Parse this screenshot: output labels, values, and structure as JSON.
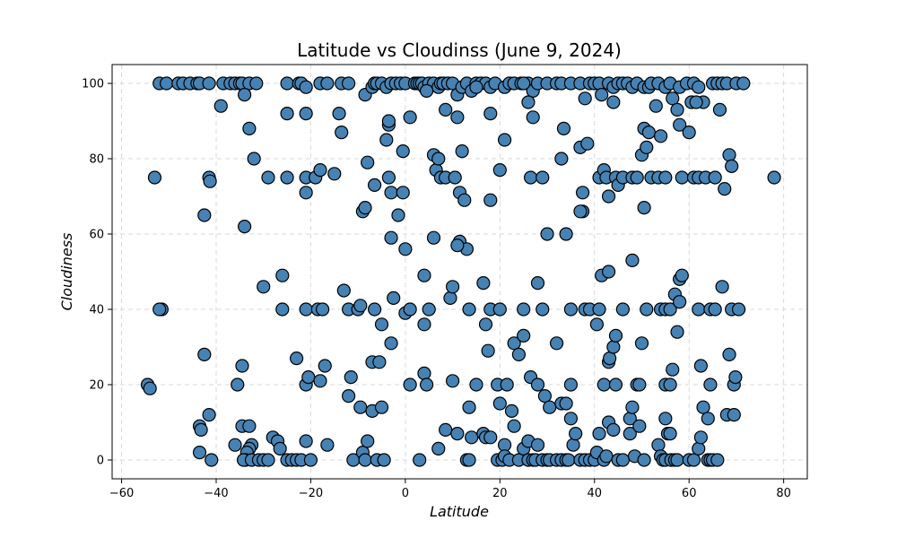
{
  "chart_data": {
    "type": "scatter",
    "title": "Latitude vs Cloudinss (June 9, 2024)",
    "xlabel": "Latitude",
    "ylabel": "Cloudiness",
    "xlim": [
      -62,
      85
    ],
    "ylim": [
      -5,
      105
    ],
    "xticks": [
      -60,
      -40,
      -20,
      0,
      20,
      40,
      60,
      80
    ],
    "yticks": [
      0,
      20,
      40,
      60,
      80,
      100
    ],
    "grid": true,
    "marker_color": "#4682b4",
    "marker_edge": "#000000",
    "points": [
      [
        -52,
        100
      ],
      [
        -50.5,
        100
      ],
      [
        -48,
        100
      ],
      [
        -47,
        100
      ],
      [
        -45.5,
        100
      ],
      [
        -44,
        100
      ],
      [
        -43.5,
        100
      ],
      [
        -41.5,
        100
      ],
      [
        -38.5,
        100
      ],
      [
        -37,
        100
      ],
      [
        -36,
        100
      ],
      [
        -35,
        100
      ],
      [
        -34.5,
        100
      ],
      [
        -33,
        100
      ],
      [
        -31.5,
        100
      ],
      [
        -25,
        100
      ],
      [
        -22.5,
        100
      ],
      [
        -22,
        100
      ],
      [
        -21,
        99
      ],
      [
        -18,
        100
      ],
      [
        -16.5,
        100
      ],
      [
        -13.5,
        100
      ],
      [
        -12,
        100
      ],
      [
        -8.5,
        97
      ],
      [
        -7,
        99
      ],
      [
        -6.5,
        100
      ],
      [
        -6,
        100
      ],
      [
        -5,
        100
      ],
      [
        -4,
        99
      ],
      [
        -3,
        100
      ],
      [
        -2,
        100
      ],
      [
        -1,
        100
      ],
      [
        0,
        100
      ],
      [
        2,
        100
      ],
      [
        2.5,
        100
      ],
      [
        3,
        100
      ],
      [
        3.5,
        100
      ],
      [
        4,
        99
      ],
      [
        5,
        100
      ],
      [
        6,
        100
      ],
      [
        7,
        99
      ],
      [
        7.5,
        100
      ],
      [
        8,
        100
      ],
      [
        9,
        100
      ],
      [
        10,
        100
      ],
      [
        11,
        97
      ],
      [
        12,
        99
      ],
      [
        13,
        100
      ],
      [
        14,
        98
      ],
      [
        15,
        100
      ],
      [
        16,
        100
      ],
      [
        17,
        100
      ],
      [
        18,
        99
      ],
      [
        19,
        100
      ],
      [
        21,
        99
      ],
      [
        22,
        100
      ],
      [
        23,
        100
      ],
      [
        24.5,
        100
      ],
      [
        26,
        100
      ],
      [
        27,
        98
      ],
      [
        28,
        100
      ],
      [
        30,
        100
      ],
      [
        32,
        100
      ],
      [
        33,
        100
      ],
      [
        35,
        100
      ],
      [
        37,
        100
      ],
      [
        39,
        100
      ],
      [
        40,
        100
      ],
      [
        41,
        100
      ],
      [
        41.5,
        97
      ],
      [
        43,
        100
      ],
      [
        44,
        99
      ],
      [
        45,
        100
      ],
      [
        46,
        100
      ],
      [
        47,
        100
      ],
      [
        48,
        99
      ],
      [
        49,
        100
      ],
      [
        50.5,
        99
      ],
      [
        51.5,
        99
      ],
      [
        52,
        100
      ],
      [
        53.5,
        100
      ],
      [
        55,
        99
      ],
      [
        56,
        100
      ],
      [
        58,
        99
      ],
      [
        59.5,
        100
      ],
      [
        61,
        100
      ],
      [
        62,
        99
      ],
      [
        63,
        95
      ],
      [
        65,
        100
      ],
      [
        66,
        100
      ],
      [
        67,
        100
      ],
      [
        68,
        100
      ],
      [
        70,
        100
      ],
      [
        71.5,
        100
      ],
      [
        -53,
        75
      ],
      [
        -51.5,
        40
      ],
      [
        -39,
        94
      ],
      [
        -41.5,
        75
      ],
      [
        -41.3,
        74
      ],
      [
        -42.5,
        65
      ],
      [
        -33,
        88
      ],
      [
        -32,
        80
      ],
      [
        -34,
        62
      ],
      [
        -34,
        97
      ],
      [
        -25,
        92
      ],
      [
        -29,
        75
      ],
      [
        -25,
        75
      ],
      [
        -21,
        92
      ],
      [
        -21,
        75
      ],
      [
        -21,
        71
      ],
      [
        -19,
        75
      ],
      [
        -18,
        77
      ],
      [
        -15,
        76
      ],
      [
        -14,
        92
      ],
      [
        -13.5,
        87
      ],
      [
        -9,
        66
      ],
      [
        -8.5,
        67
      ],
      [
        -8,
        79
      ],
      [
        -6.5,
        73
      ],
      [
        -4,
        85
      ],
      [
        -3.5,
        89
      ],
      [
        -3.5,
        90
      ],
      [
        -3.5,
        75
      ],
      [
        -3,
        71
      ],
      [
        -1.5,
        65
      ],
      [
        -0.5,
        82
      ],
      [
        -0.5,
        71
      ],
      [
        1,
        91
      ],
      [
        4.5,
        98
      ],
      [
        6,
        81
      ],
      [
        6.5,
        77
      ],
      [
        7,
        80
      ],
      [
        7.5,
        75
      ],
      [
        8.5,
        93
      ],
      [
        8.5,
        75
      ],
      [
        10.5,
        75
      ],
      [
        11,
        91
      ],
      [
        11.5,
        71
      ],
      [
        12,
        82
      ],
      [
        12.5,
        69
      ],
      [
        15,
        99
      ],
      [
        18,
        92
      ],
      [
        18,
        69
      ],
      [
        20,
        77
      ],
      [
        21,
        85
      ],
      [
        25,
        100
      ],
      [
        26,
        95
      ],
      [
        26.5,
        75
      ],
      [
        27,
        91
      ],
      [
        29,
        75
      ],
      [
        33,
        80
      ],
      [
        33.5,
        88
      ],
      [
        37,
        83
      ],
      [
        37.5,
        66
      ],
      [
        37.5,
        71
      ],
      [
        38,
        96
      ],
      [
        38.5,
        84
      ],
      [
        41,
        75
      ],
      [
        42,
        77
      ],
      [
        42.5,
        75
      ],
      [
        43,
        70
      ],
      [
        44,
        95
      ],
      [
        44.5,
        75
      ],
      [
        45,
        73
      ],
      [
        46,
        75
      ],
      [
        48,
        75
      ],
      [
        49,
        75
      ],
      [
        50,
        81
      ],
      [
        50.5,
        88
      ],
      [
        51,
        83
      ],
      [
        51.5,
        87
      ],
      [
        52,
        75
      ],
      [
        53,
        94
      ],
      [
        53.5,
        75
      ],
      [
        54,
        86
      ],
      [
        55,
        75
      ],
      [
        56.5,
        96
      ],
      [
        57.5,
        93
      ],
      [
        58,
        89
      ],
      [
        58.5,
        75
      ],
      [
        60,
        87
      ],
      [
        60.5,
        95
      ],
      [
        61,
        75
      ],
      [
        61.5,
        95
      ],
      [
        62,
        75
      ],
      [
        63.5,
        75
      ],
      [
        65.5,
        75
      ],
      [
        66.5,
        93
      ],
      [
        67.5,
        72
      ],
      [
        68.5,
        81
      ],
      [
        69,
        78
      ],
      [
        78,
        75
      ],
      [
        -3,
        59
      ],
      [
        0,
        56
      ],
      [
        6,
        59
      ],
      [
        11.5,
        58
      ],
      [
        13,
        56
      ],
      [
        11,
        57
      ],
      [
        30,
        60
      ],
      [
        34,
        60
      ],
      [
        37,
        66
      ],
      [
        50.5,
        67
      ],
      [
        -52,
        40
      ],
      [
        -30,
        46
      ],
      [
        -26,
        49
      ],
      [
        -26,
        40
      ],
      [
        -21,
        40
      ],
      [
        -18.5,
        40
      ],
      [
        -17.5,
        40
      ],
      [
        -13,
        45
      ],
      [
        -12,
        40
      ],
      [
        -10,
        40
      ],
      [
        -9.5,
        41
      ],
      [
        -6.5,
        40
      ],
      [
        -5,
        36
      ],
      [
        -2.5,
        43
      ],
      [
        0,
        39
      ],
      [
        1,
        40
      ],
      [
        4,
        49
      ],
      [
        4,
        36
      ],
      [
        5,
        40
      ],
      [
        9.5,
        43
      ],
      [
        10,
        46
      ],
      [
        13.5,
        40
      ],
      [
        16.5,
        47
      ],
      [
        17,
        36
      ],
      [
        18,
        40
      ],
      [
        20,
        40
      ],
      [
        25,
        40
      ],
      [
        28,
        47
      ],
      [
        29,
        40
      ],
      [
        35,
        40
      ],
      [
        38,
        40
      ],
      [
        39,
        40
      ],
      [
        40.5,
        36
      ],
      [
        41,
        40
      ],
      [
        41.5,
        49
      ],
      [
        43,
        50
      ],
      [
        46,
        40
      ],
      [
        48,
        53
      ],
      [
        51,
        40
      ],
      [
        54,
        40
      ],
      [
        55,
        40
      ],
      [
        56,
        40
      ],
      [
        57,
        44
      ],
      [
        57.5,
        34
      ],
      [
        58,
        48
      ],
      [
        58.5,
        49
      ],
      [
        58,
        42
      ],
      [
        62,
        40
      ],
      [
        64.5,
        40
      ],
      [
        65.5,
        40
      ],
      [
        67,
        46
      ],
      [
        69,
        40
      ],
      [
        70.5,
        40
      ],
      [
        -54.5,
        20
      ],
      [
        -54,
        19
      ],
      [
        -42.5,
        28
      ],
      [
        -35.5,
        20
      ],
      [
        -34.5,
        25
      ],
      [
        -23,
        27
      ],
      [
        -21,
        20
      ],
      [
        -20.5,
        22
      ],
      [
        -18,
        21
      ],
      [
        -17,
        25
      ],
      [
        -12,
        17
      ],
      [
        -11.5,
        22
      ],
      [
        -9.5,
        14
      ],
      [
        -7,
        26
      ],
      [
        -7,
        13
      ],
      [
        -5.5,
        26
      ],
      [
        -5,
        14
      ],
      [
        -3,
        31
      ],
      [
        1,
        20
      ],
      [
        4,
        23
      ],
      [
        4.5,
        20
      ],
      [
        10,
        21
      ],
      [
        13.5,
        14
      ],
      [
        15,
        20
      ],
      [
        17.5,
        29
      ],
      [
        19.5,
        20
      ],
      [
        20,
        15
      ],
      [
        21.5,
        20
      ],
      [
        22.5,
        13
      ],
      [
        23,
        31
      ],
      [
        24,
        28
      ],
      [
        25,
        33
      ],
      [
        26.5,
        22
      ],
      [
        28,
        20
      ],
      [
        29.5,
        17
      ],
      [
        30.5,
        14
      ],
      [
        32,
        31
      ],
      [
        33,
        15
      ],
      [
        34,
        15
      ],
      [
        35,
        20
      ],
      [
        35,
        11
      ],
      [
        42,
        20
      ],
      [
        43,
        26
      ],
      [
        43.2,
        27
      ],
      [
        44,
        30
      ],
      [
        44.5,
        33
      ],
      [
        44.5,
        20
      ],
      [
        47.5,
        11
      ],
      [
        48,
        14
      ],
      [
        49,
        20
      ],
      [
        49.5,
        20
      ],
      [
        50,
        31
      ],
      [
        55,
        20
      ],
      [
        55,
        11
      ],
      [
        56,
        20
      ],
      [
        56.5,
        24
      ],
      [
        62.5,
        25
      ],
      [
        63,
        14
      ],
      [
        64,
        11
      ],
      [
        64.5,
        20
      ],
      [
        68.5,
        28
      ],
      [
        69.5,
        20
      ],
      [
        69.8,
        22
      ],
      [
        -43.5,
        9
      ],
      [
        -43.2,
        8
      ],
      [
        -41.5,
        12
      ],
      [
        -43.5,
        2
      ],
      [
        -41,
        0
      ],
      [
        -36,
        4
      ],
      [
        -34.5,
        9
      ],
      [
        -33,
        9
      ],
      [
        -32.5,
        4
      ],
      [
        -33,
        3
      ],
      [
        -33.5,
        2
      ],
      [
        -33.8,
        0
      ],
      [
        -34.2,
        0
      ],
      [
        -32.5,
        0
      ],
      [
        -31,
        0
      ],
      [
        -30,
        0
      ],
      [
        -29,
        0
      ],
      [
        -28,
        6
      ],
      [
        -27,
        5
      ],
      [
        -26.5,
        3
      ],
      [
        -25,
        0
      ],
      [
        -24,
        0
      ],
      [
        -23,
        0
      ],
      [
        -22,
        0
      ],
      [
        -21,
        5
      ],
      [
        -20,
        0
      ],
      [
        -16.5,
        4
      ],
      [
        -11,
        0
      ],
      [
        -9,
        2
      ],
      [
        -8.5,
        0
      ],
      [
        -8,
        5
      ],
      [
        -6,
        0
      ],
      [
        -4.5,
        0
      ],
      [
        3,
        0
      ],
      [
        7,
        3
      ],
      [
        8.5,
        8
      ],
      [
        11,
        7
      ],
      [
        13,
        0
      ],
      [
        13.5,
        0
      ],
      [
        14,
        6
      ],
      [
        16.5,
        7
      ],
      [
        17,
        6
      ],
      [
        18,
        6
      ],
      [
        19.5,
        0
      ],
      [
        20.5,
        0
      ],
      [
        21,
        4
      ],
      [
        21,
        1
      ],
      [
        22,
        0
      ],
      [
        23,
        9
      ],
      [
        24,
        0
      ],
      [
        25,
        3
      ],
      [
        26,
        5
      ],
      [
        26,
        0
      ],
      [
        27,
        0
      ],
      [
        27.5,
        0
      ],
      [
        28,
        4
      ],
      [
        29,
        0
      ],
      [
        30,
        0
      ],
      [
        30.5,
        0
      ],
      [
        32,
        0
      ],
      [
        33,
        0
      ],
      [
        34,
        0
      ],
      [
        34.5,
        0
      ],
      [
        35.5,
        4
      ],
      [
        36,
        7
      ],
      [
        37,
        0
      ],
      [
        38,
        0
      ],
      [
        39,
        0
      ],
      [
        40,
        0
      ],
      [
        40.5,
        2
      ],
      [
        41,
        7
      ],
      [
        42,
        0
      ],
      [
        42.5,
        1
      ],
      [
        43,
        10
      ],
      [
        44,
        8
      ],
      [
        45,
        0
      ],
      [
        46,
        0
      ],
      [
        47.5,
        7
      ],
      [
        48.5,
        1
      ],
      [
        49.5,
        9
      ],
      [
        50.5,
        0
      ],
      [
        53.5,
        4
      ],
      [
        54,
        1
      ],
      [
        54.5,
        0
      ],
      [
        55,
        0
      ],
      [
        55.5,
        7
      ],
      [
        56,
        7
      ],
      [
        56.2,
        0
      ],
      [
        57,
        0
      ],
      [
        57.5,
        0
      ],
      [
        60,
        0
      ],
      [
        61,
        0
      ],
      [
        62,
        3
      ],
      [
        62.5,
        6
      ],
      [
        64,
        0
      ],
      [
        64.5,
        0
      ],
      [
        65,
        0
      ],
      [
        66,
        0
      ],
      [
        68,
        12
      ],
      [
        69.5,
        12
      ]
    ]
  }
}
